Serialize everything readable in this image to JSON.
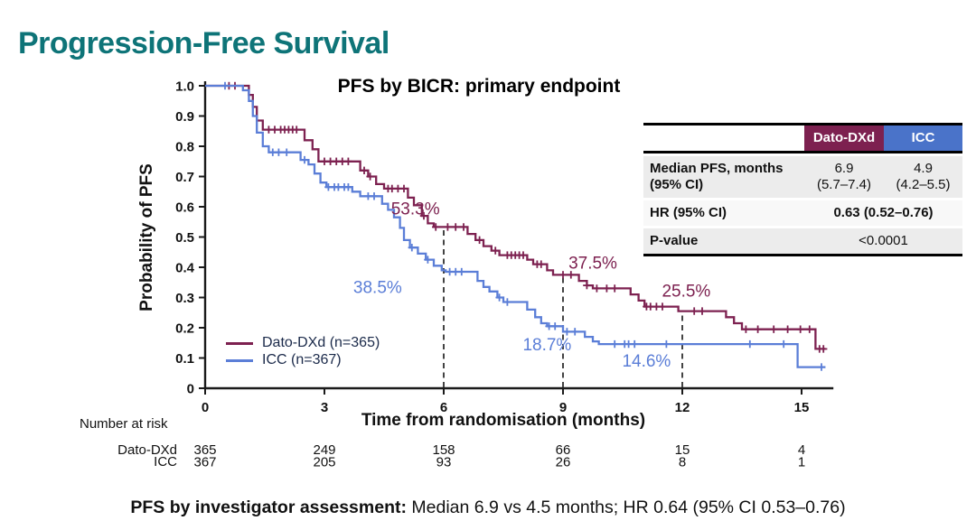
{
  "slide": {
    "title": "Progression-Free Survival",
    "caption_bold": "PFS by investigator assessment:",
    "caption_rest": " Median 6.9 vs 4.5 months; HR 0.64 (95% CI 0.53–0.76)"
  },
  "colors": {
    "title_teal": "#0E7478",
    "dato_maroon": "#7D2150",
    "icc_blue": "#5B7ED7",
    "icc_header_blue": "#4A73C9",
    "axis_black": "#1A1A1A",
    "legend_text": "#1B2A4A",
    "dash_gray": "#3A3A3A",
    "row_gray": "#ECECEC",
    "row_light": "#F8F8F8"
  },
  "stats_table": {
    "header_dato": "Dato-DXd",
    "header_icc": "ICC",
    "median_label": "Median PFS, months\n(95% CI)",
    "median_dato": "6.9\n(5.7–7.4)",
    "median_icc": "4.9\n(4.2–5.5)",
    "hr_label": "HR (95% CI)",
    "hr_value": "0.63 (0.52–0.76)",
    "p_label": "P-value",
    "p_value": "<0.0001"
  },
  "chart_data": {
    "type": "line",
    "subtype": "kaplan-meier-step",
    "title": "PFS by BICR: primary endpoint",
    "xlabel": "Time from randomisation (months)",
    "ylabel": "Probability of PFS",
    "xlim": [
      0,
      15.8
    ],
    "ylim": [
      0,
      1.0
    ],
    "grid": false,
    "legend_position": "inside-lower-left",
    "xticks": [
      0,
      3,
      6,
      9,
      12,
      15
    ],
    "yticks": [
      {
        "v": 1.0,
        "label": "1.0"
      },
      {
        "v": 0.9,
        "label": "0.9"
      },
      {
        "v": 0.8,
        "label": "0.8"
      },
      {
        "v": 0.7,
        "label": "0.7"
      },
      {
        "v": 0.6,
        "label": "0.6"
      },
      {
        "v": 0.5,
        "label": "0.5"
      },
      {
        "v": 0.4,
        "label": "0.4"
      },
      {
        "v": 0.3,
        "label": "0.3"
      },
      {
        "v": 0.2,
        "label": "0.2"
      },
      {
        "v": 0.1,
        "label": "0.1"
      },
      {
        "v": 0.0,
        "label": "0"
      }
    ],
    "series": [
      {
        "name": "Dato-DXd (n=365)",
        "color": "#7D2150",
        "median_months": 6.9,
        "landmarks": {
          "6mo": 0.533,
          "9mo": 0.375,
          "12mo": 0.255
        },
        "points": [
          [
            0,
            1.0
          ],
          [
            1.1,
            0.97
          ],
          [
            1.2,
            0.93
          ],
          [
            1.3,
            0.885
          ],
          [
            1.45,
            0.855
          ],
          [
            2.5,
            0.82
          ],
          [
            2.7,
            0.79
          ],
          [
            2.85,
            0.75
          ],
          [
            3.9,
            0.72
          ],
          [
            4.1,
            0.7
          ],
          [
            4.3,
            0.675
          ],
          [
            4.5,
            0.66
          ],
          [
            5.1,
            0.63
          ],
          [
            5.25,
            0.605
          ],
          [
            5.45,
            0.57
          ],
          [
            5.6,
            0.545
          ],
          [
            5.75,
            0.533
          ],
          [
            6.6,
            0.51
          ],
          [
            6.8,
            0.49
          ],
          [
            7.0,
            0.47
          ],
          [
            7.2,
            0.455
          ],
          [
            7.4,
            0.44
          ],
          [
            8.1,
            0.425
          ],
          [
            8.25,
            0.41
          ],
          [
            8.6,
            0.39
          ],
          [
            8.75,
            0.375
          ],
          [
            9.4,
            0.355
          ],
          [
            9.6,
            0.34
          ],
          [
            9.75,
            0.33
          ],
          [
            10.7,
            0.31
          ],
          [
            10.9,
            0.29
          ],
          [
            11.05,
            0.27
          ],
          [
            11.9,
            0.255
          ],
          [
            13.1,
            0.235
          ],
          [
            13.3,
            0.215
          ],
          [
            13.5,
            0.195
          ],
          [
            15.35,
            0.13
          ],
          [
            15.6,
            0.13
          ]
        ],
        "censors": [
          0.6,
          0.75,
          1.6,
          1.75,
          1.9,
          2.0,
          2.1,
          2.2,
          2.3,
          3.0,
          3.15,
          3.3,
          3.45,
          3.6,
          4.0,
          4.15,
          4.6,
          4.7,
          4.85,
          5.0,
          5.5,
          5.8,
          6.1,
          6.3,
          6.5,
          6.9,
          7.3,
          7.6,
          7.7,
          7.8,
          7.9,
          8.0,
          8.35,
          8.45,
          9.0,
          9.2,
          9.6,
          9.85,
          10.1,
          10.3,
          11.1,
          11.2,
          11.35,
          11.5,
          12.3,
          12.5,
          13.6,
          13.9,
          14.3,
          14.65,
          14.97,
          15.2,
          15.45,
          15.55
        ]
      },
      {
        "name": "ICC (n=367)",
        "color": "#5B7ED7",
        "median_months": 4.9,
        "landmarks": {
          "6mo": 0.385,
          "9mo": 0.187,
          "12mo": 0.146
        },
        "points": [
          [
            0,
            1.0
          ],
          [
            0.95,
            0.985
          ],
          [
            1.1,
            0.95
          ],
          [
            1.2,
            0.9
          ],
          [
            1.3,
            0.845
          ],
          [
            1.45,
            0.8
          ],
          [
            1.6,
            0.78
          ],
          [
            2.4,
            0.755
          ],
          [
            2.6,
            0.74
          ],
          [
            2.75,
            0.71
          ],
          [
            2.9,
            0.68
          ],
          [
            3.05,
            0.665
          ],
          [
            3.7,
            0.65
          ],
          [
            3.9,
            0.635
          ],
          [
            4.45,
            0.61
          ],
          [
            4.6,
            0.59
          ],
          [
            4.75,
            0.565
          ],
          [
            4.9,
            0.53
          ],
          [
            5.0,
            0.49
          ],
          [
            5.15,
            0.465
          ],
          [
            5.35,
            0.445
          ],
          [
            5.55,
            0.425
          ],
          [
            5.75,
            0.405
          ],
          [
            5.95,
            0.39
          ],
          [
            6.05,
            0.385
          ],
          [
            6.85,
            0.355
          ],
          [
            7.0,
            0.335
          ],
          [
            7.15,
            0.32
          ],
          [
            7.35,
            0.3
          ],
          [
            7.5,
            0.285
          ],
          [
            8.1,
            0.26
          ],
          [
            8.3,
            0.235
          ],
          [
            8.45,
            0.215
          ],
          [
            8.6,
            0.205
          ],
          [
            9.0,
            0.187
          ],
          [
            9.55,
            0.17
          ],
          [
            9.75,
            0.155
          ],
          [
            9.9,
            0.146
          ],
          [
            14.9,
            0.07
          ],
          [
            15.6,
            0.07
          ]
        ],
        "censors": [
          0.5,
          1.7,
          1.85,
          2.05,
          2.5,
          3.1,
          3.25,
          3.35,
          3.5,
          3.6,
          4.1,
          4.25,
          5.2,
          5.6,
          6.15,
          6.3,
          6.45,
          7.4,
          7.6,
          8.65,
          8.8,
          9.1,
          9.3,
          10.3,
          10.55,
          10.65,
          10.8,
          11.6,
          13.7,
          14.55,
          15.5
        ]
      }
    ],
    "dashed_lines": [
      {
        "x": 6,
        "top": 0.533
      },
      {
        "x": 9,
        "top": 0.375
      },
      {
        "x": 12,
        "top": 0.255
      }
    ],
    "annotations": [
      {
        "text": "53.3%",
        "x": 5.9,
        "y": 0.575,
        "series": 0,
        "anchor": "end"
      },
      {
        "text": "38.5%",
        "x": 4.95,
        "y": 0.315,
        "series": 1,
        "anchor": "end"
      },
      {
        "text": "37.5%",
        "x": 9.75,
        "y": 0.395,
        "series": 0,
        "anchor": "middle"
      },
      {
        "text": "18.7%",
        "x": 8.6,
        "y": 0.125,
        "series": 1,
        "anchor": "middle"
      },
      {
        "text": "25.5%",
        "x": 12.1,
        "y": 0.303,
        "series": 0,
        "anchor": "middle"
      },
      {
        "text": "14.6%",
        "x": 11.1,
        "y": 0.072,
        "series": 1,
        "anchor": "middle"
      }
    ],
    "at_risk": {
      "label": "Number at risk",
      "times": [
        0,
        3,
        6,
        9,
        12,
        15
      ],
      "rows": [
        {
          "name": "Dato-DXd",
          "values": [
            365,
            249,
            158,
            66,
            15,
            4
          ]
        },
        {
          "name": "ICC",
          "values": [
            367,
            205,
            93,
            26,
            8,
            1
          ]
        }
      ]
    }
  }
}
